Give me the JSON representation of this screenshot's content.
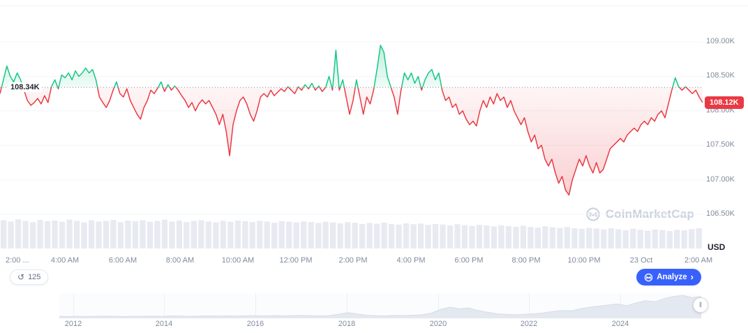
{
  "chart": {
    "baseline_label": "108.34K",
    "current_price_label": "108.12K",
    "currency": "USD",
    "y_axis_labels": [
      "109.00K",
      "108.50K",
      "108.00K",
      "107.50K",
      "107.00K",
      "106.50K"
    ],
    "x_axis_labels": [
      "2:00 ...",
      "4:00 AM",
      "6:00 AM",
      "8:00 AM",
      "10:00 AM",
      "12:00 PM",
      "2:00 PM",
      "4:00 PM",
      "6:00 PM",
      "8:00 PM",
      "10:00 PM",
      "23 Oct",
      "2:00 AM"
    ]
  },
  "watermark": {
    "text": "CoinMarketCap"
  },
  "toolbar": {
    "history_count": "125",
    "analyze_label": "Analyze"
  },
  "icons": {
    "history": "↺",
    "chevron": "›",
    "handle": "‖"
  },
  "navigator": {
    "years": [
      "2012",
      "2014",
      "2016",
      "2018",
      "2020",
      "2022",
      "2024"
    ]
  },
  "colors": {
    "up": "#16C784",
    "down": "#EA3943",
    "accent": "#3861FB",
    "axis_text": "#808a9d",
    "grid": "#f2f4f8",
    "volume": "#e7eaf1",
    "nav_fill": "#e4e8f0",
    "nav_stroke": "#d7dce6"
  },
  "chart_data": {
    "type": "line",
    "unit": "USD (thousands)",
    "baseline": 108.34,
    "last": 108.12,
    "ylim": [
      106.5,
      109.5
    ],
    "y_tick_values": [
      109.0,
      108.5,
      108.0,
      107.5,
      107.0,
      106.5
    ],
    "x_tick_labels": [
      "2:00 ...",
      "4:00 AM",
      "6:00 AM",
      "8:00 AM",
      "10:00 AM",
      "12:00 PM",
      "2:00 PM",
      "4:00 PM",
      "6:00 PM",
      "8:00 PM",
      "10:00 PM",
      "23 Oct",
      "2:00 AM"
    ],
    "series": [
      {
        "name": "Price",
        "values": [
          108.25,
          108.45,
          108.65,
          108.5,
          108.42,
          108.55,
          108.45,
          108.3,
          108.15,
          108.08,
          108.12,
          108.18,
          108.1,
          108.22,
          108.12,
          108.35,
          108.45,
          108.32,
          108.52,
          108.48,
          108.55,
          108.45,
          108.58,
          108.5,
          108.55,
          108.62,
          108.55,
          108.6,
          108.45,
          108.2,
          108.12,
          108.05,
          108.15,
          108.3,
          108.42,
          108.25,
          108.2,
          108.32,
          108.15,
          108.05,
          107.95,
          107.88,
          108.05,
          108.15,
          108.3,
          108.25,
          108.33,
          108.42,
          108.28,
          108.38,
          108.3,
          108.36,
          108.3,
          108.22,
          108.15,
          108.05,
          108.12,
          108.0,
          108.1,
          108.16,
          108.1,
          108.15,
          108.05,
          107.95,
          107.8,
          107.95,
          107.7,
          107.35,
          107.8,
          108.0,
          108.15,
          108.2,
          108.1,
          107.95,
          107.85,
          108.0,
          108.2,
          108.25,
          108.2,
          108.3,
          108.22,
          108.27,
          108.32,
          108.28,
          108.35,
          108.3,
          108.25,
          108.35,
          108.3,
          108.38,
          108.32,
          108.4,
          108.3,
          108.36,
          108.28,
          108.34,
          108.5,
          108.3,
          108.88,
          108.3,
          108.45,
          108.2,
          107.95,
          108.15,
          108.45,
          108.2,
          107.95,
          108.2,
          108.1,
          108.3,
          108.6,
          108.95,
          108.85,
          108.5,
          108.35,
          108.2,
          107.95,
          108.3,
          108.55,
          108.45,
          108.55,
          108.4,
          108.5,
          108.3,
          108.45,
          108.55,
          108.6,
          108.45,
          108.55,
          108.3,
          108.15,
          108.2,
          108.05,
          108.1,
          107.95,
          108.0,
          107.88,
          107.8,
          107.85,
          107.78,
          108.0,
          108.15,
          108.05,
          108.2,
          108.1,
          108.25,
          108.15,
          108.2,
          108.05,
          108.15,
          108.0,
          107.9,
          107.8,
          107.9,
          107.7,
          107.55,
          107.65,
          107.45,
          107.5,
          107.3,
          107.2,
          107.3,
          107.1,
          106.95,
          107.05,
          106.85,
          106.78,
          107.0,
          107.15,
          107.3,
          107.2,
          107.35,
          107.2,
          107.1,
          107.25,
          107.1,
          107.15,
          107.3,
          107.45,
          107.5,
          107.55,
          107.6,
          107.55,
          107.65,
          107.7,
          107.75,
          107.7,
          107.8,
          107.85,
          107.8,
          107.9,
          107.85,
          107.95,
          108.0,
          107.9,
          108.1,
          108.3,
          108.48,
          108.35,
          108.3,
          108.35,
          108.3,
          108.25,
          108.3,
          108.2,
          108.12
        ]
      }
    ],
    "volume_relative": [
      0.92,
      0.88,
      0.95,
      0.9,
      0.86,
      0.93,
      0.89,
      0.91,
      0.87,
      0.94,
      0.9,
      0.85,
      0.92,
      0.88,
      0.9,
      0.93,
      0.86,
      0.91,
      0.89,
      0.92,
      0.87,
      0.9,
      0.94,
      0.88,
      0.91,
      0.86,
      0.9,
      0.92,
      0.88,
      0.85,
      0.9,
      0.87,
      0.91,
      0.89,
      0.86,
      0.9,
      0.88,
      0.84,
      0.89,
      0.87,
      0.85,
      0.88,
      0.86,
      0.83,
      0.87,
      0.85,
      0.82,
      0.86,
      0.84,
      0.8,
      0.83,
      0.81,
      0.84,
      0.8,
      0.78,
      0.82,
      0.79,
      0.81,
      0.77,
      0.8,
      0.78,
      0.75,
      0.79,
      0.76,
      0.74,
      0.77,
      0.75,
      0.72,
      0.76,
      0.73,
      0.71,
      0.74,
      0.7,
      0.68,
      0.72,
      0.69,
      0.67,
      0.7,
      0.66,
      0.64,
      0.67,
      0.65,
      0.62,
      0.66,
      0.63,
      0.6,
      0.64,
      0.61,
      0.58,
      0.62,
      0.6,
      0.57,
      0.61,
      0.59,
      0.63,
      0.66
    ],
    "navigator_years": [
      "2012",
      "2014",
      "2016",
      "2018",
      "2020",
      "2022",
      "2024"
    ],
    "navigator_values": [
      0.03,
      0.02,
      0.03,
      0.02,
      0.03,
      0.04,
      0.03,
      0.02,
      0.03,
      0.03,
      0.04,
      0.03,
      0.05,
      0.04,
      0.03,
      0.04,
      0.05,
      0.04,
      0.05,
      0.04,
      0.05,
      0.06,
      0.05,
      0.06,
      0.05,
      0.06,
      0.07,
      0.06,
      0.05,
      0.06,
      0.12,
      0.2,
      0.14,
      0.08,
      0.06,
      0.05,
      0.07,
      0.06,
      0.08,
      0.1,
      0.18,
      0.35,
      0.45,
      0.38,
      0.42,
      0.3,
      0.22,
      0.15,
      0.12,
      0.1,
      0.12,
      0.15,
      0.18,
      0.25,
      0.3,
      0.28,
      0.38,
      0.45,
      0.5,
      0.55,
      0.6,
      0.52,
      0.65,
      0.75,
      0.7,
      0.85,
      0.95,
      1.0,
      0.9,
      0.95
    ]
  }
}
